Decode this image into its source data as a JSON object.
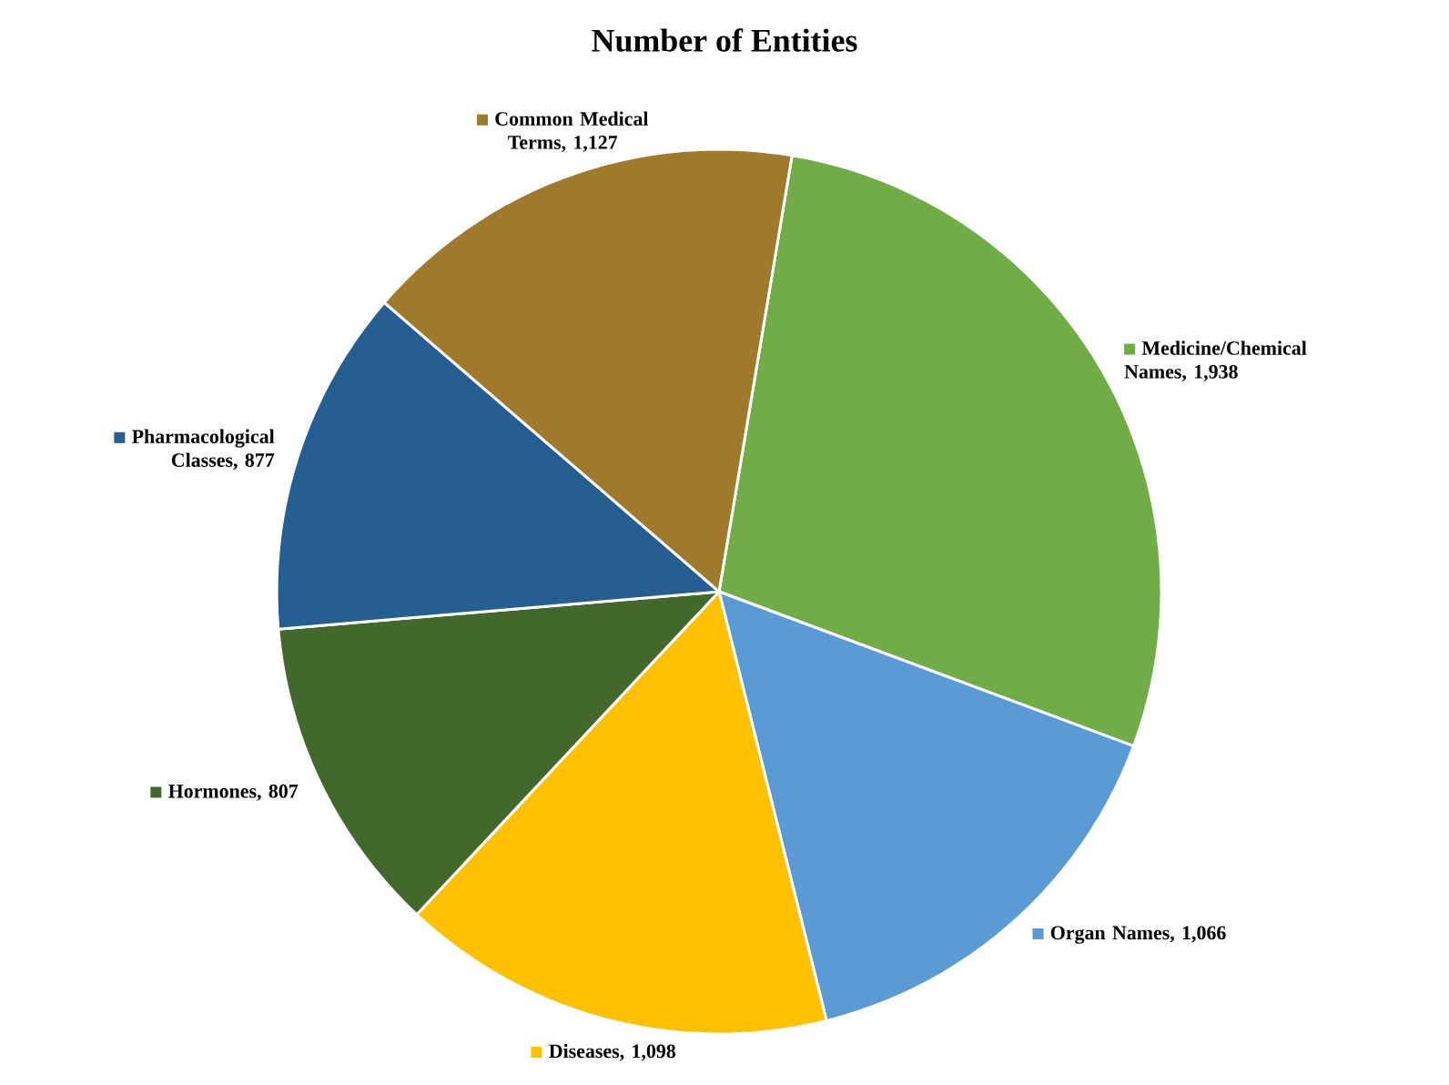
{
  "chart_data": {
    "type": "pie",
    "title": "Number of Entities",
    "categories": [
      "Medicine/Chemical Names",
      "Organ Names",
      "Diseases",
      "Hormones",
      "Pharmacological Classes",
      "Common Medical Terms"
    ],
    "values": [
      1938,
      1066,
      1098,
      807,
      877,
      1127
    ],
    "value_labels": [
      ", 1,938",
      ", 1,066",
      ", 1,098",
      ", 807",
      ", 877",
      ", 1,127"
    ],
    "colors": [
      "#70ad47",
      "#5b9bd5",
      "#ffc000",
      "#43682b",
      "#255e91",
      "#9e7a2a"
    ],
    "legend": true
  }
}
